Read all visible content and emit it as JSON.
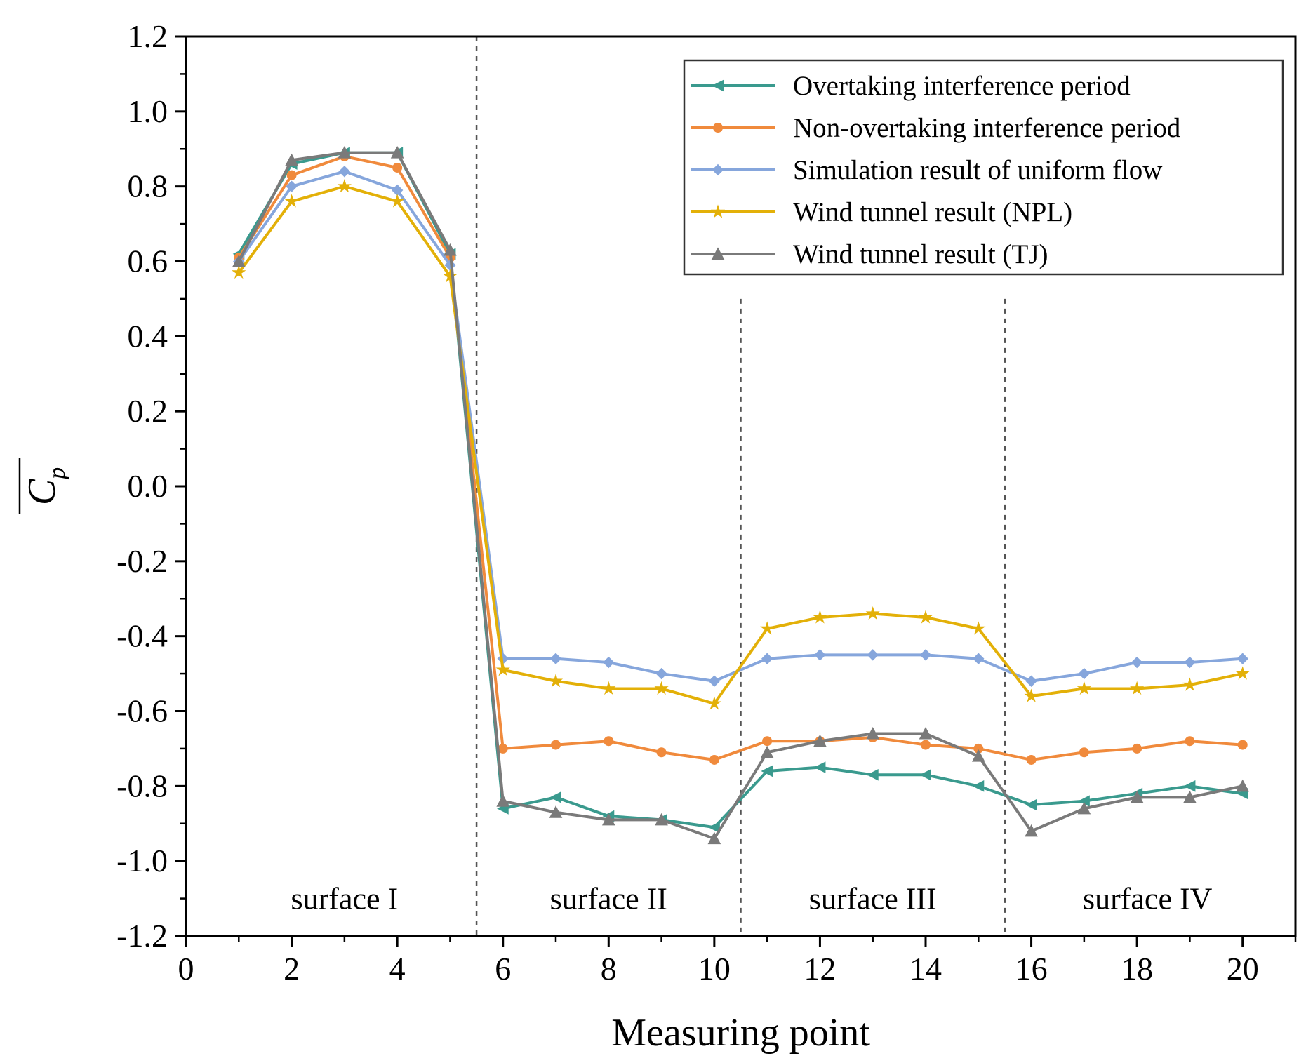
{
  "chart_data": {
    "type": "line",
    "xlabel": "Measuring point",
    "ylabel": "C",
    "ylabel_subscript": "p",
    "xlim": [
      0,
      21
    ],
    "ylim": [
      -1.2,
      1.2
    ],
    "xticks": [
      0,
      2,
      4,
      6,
      8,
      10,
      12,
      14,
      16,
      18,
      20
    ],
    "xtick_labels": [
      "0",
      "2",
      "4",
      "6",
      "8",
      "10",
      "12",
      "14",
      "16",
      "18",
      "20"
    ],
    "yticks": [
      1.2,
      1.0,
      0.8,
      0.6,
      0.4,
      0.2,
      0.0,
      -0.2,
      -0.4,
      -0.6,
      -0.8,
      -1.0,
      -1.2
    ],
    "ytick_labels": [
      "1.2",
      "1.0",
      "0.8",
      "0.6",
      "0.4",
      "0.2",
      "0.0",
      "-0.2",
      "-0.4",
      "-0.6",
      "-0.8",
      "-1.0",
      "-1.2"
    ],
    "legend_position": "top-right",
    "dividers": [
      5.5,
      10.5,
      15.5
    ],
    "regions": [
      {
        "label": "surface I",
        "x": 3,
        "y": -1.1
      },
      {
        "label": "surface II",
        "x": 8,
        "y": -1.1
      },
      {
        "label": "surface III",
        "x": 13,
        "y": -1.1
      },
      {
        "label": "surface IV",
        "x": 18.2,
        "y": -1.1
      }
    ],
    "x": [
      1,
      2,
      3,
      4,
      5,
      6,
      7,
      8,
      9,
      10,
      11,
      12,
      13,
      14,
      15,
      16,
      17,
      18,
      19,
      20
    ],
    "series": [
      {
        "name": "Overtaking interference period",
        "color": "#3a9a8e",
        "marker": "triangle-left",
        "values": [
          0.62,
          0.86,
          0.89,
          0.89,
          0.62,
          -0.86,
          -0.83,
          -0.88,
          -0.89,
          -0.91,
          -0.76,
          -0.75,
          -0.77,
          -0.77,
          -0.8,
          -0.85,
          -0.84,
          -0.82,
          -0.8,
          -0.82
        ]
      },
      {
        "name": "Non-overtaking interference period",
        "color": "#f08a3c",
        "marker": "circle",
        "values": [
          0.61,
          0.83,
          0.88,
          0.85,
          0.61,
          -0.7,
          -0.69,
          -0.68,
          -0.71,
          -0.73,
          -0.68,
          -0.68,
          -0.67,
          -0.69,
          -0.7,
          -0.73,
          -0.71,
          -0.7,
          -0.68,
          -0.69
        ]
      },
      {
        "name": "Simulation result of uniform flow",
        "color": "#86a6dc",
        "marker": "diamond",
        "values": [
          0.6,
          0.8,
          0.84,
          0.79,
          0.59,
          -0.46,
          -0.46,
          -0.47,
          -0.5,
          -0.52,
          -0.46,
          -0.45,
          -0.45,
          -0.45,
          -0.46,
          -0.52,
          -0.5,
          -0.47,
          -0.47,
          -0.46
        ]
      },
      {
        "name": "Wind tunnel result (NPL)",
        "color": "#e3b008",
        "marker": "star",
        "values": [
          0.57,
          0.76,
          0.8,
          0.76,
          0.56,
          -0.49,
          -0.52,
          -0.54,
          -0.54,
          -0.58,
          -0.38,
          -0.35,
          -0.34,
          -0.35,
          -0.38,
          -0.56,
          -0.54,
          -0.54,
          -0.53,
          -0.5
        ]
      },
      {
        "name": "Wind tunnel result (TJ)",
        "color": "#7a7a7a",
        "marker": "triangle-up",
        "values": [
          0.6,
          0.87,
          0.89,
          0.89,
          0.63,
          -0.84,
          -0.87,
          -0.89,
          -0.89,
          -0.94,
          -0.71,
          -0.68,
          -0.66,
          -0.66,
          -0.72,
          -0.92,
          -0.86,
          -0.83,
          -0.83,
          -0.8
        ]
      }
    ]
  }
}
